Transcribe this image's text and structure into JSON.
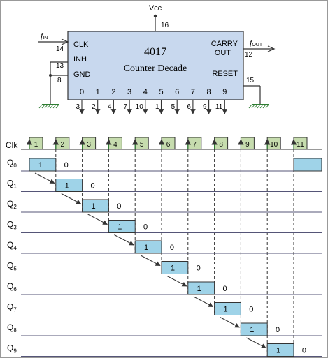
{
  "chip": {
    "vcc_label": "Vcc",
    "vcc_pin": "16",
    "name": "4017",
    "description": "Counter Decade",
    "clk_label": "CLK",
    "clk_pin": "14",
    "inh_label": "INH",
    "inh_pin": "13",
    "gnd_label": "GND",
    "gnd_pin": "8",
    "carry_label_1": "CARRY",
    "carry_label_2": "OUT",
    "carry_pin": "12",
    "reset_label": "RESET",
    "reset_pin": "15",
    "fin_main": "f",
    "fin_sub": "IN",
    "fout_main": "f",
    "fout_sub": "OUT",
    "outputs": [
      {
        "label": "0",
        "pin": "3"
      },
      {
        "label": "1",
        "pin": "2"
      },
      {
        "label": "2",
        "pin": "4"
      },
      {
        "label": "3",
        "pin": "7"
      },
      {
        "label": "4",
        "pin": "10"
      },
      {
        "label": "5",
        "pin": "1"
      },
      {
        "label": "6",
        "pin": "5"
      },
      {
        "label": "7",
        "pin": "6"
      },
      {
        "label": "8",
        "pin": "9"
      },
      {
        "label": "9",
        "pin": "11"
      }
    ],
    "body_color": "#c8d8ee",
    "ground_color": "#2e7d32"
  },
  "timing": {
    "clk_label": "Clk",
    "clock_pulses": [
      "1",
      "2",
      "3",
      "4",
      "5",
      "6",
      "7",
      "8",
      "9",
      "10",
      "11"
    ],
    "clock_color": "#c6dcae",
    "high_color": "#9fd3e8",
    "signals": [
      {
        "name": "Q",
        "sub": "0",
        "high_value": "1",
        "low_value": "0",
        "high_slot": 0
      },
      {
        "name": "Q",
        "sub": "1",
        "high_value": "1",
        "low_value": "0",
        "high_slot": 1
      },
      {
        "name": "Q",
        "sub": "2",
        "high_value": "1",
        "low_value": "0",
        "high_slot": 2
      },
      {
        "name": "Q",
        "sub": "3",
        "high_value": "1",
        "low_value": "0",
        "high_slot": 3
      },
      {
        "name": "Q",
        "sub": "4",
        "high_value": "1",
        "low_value": "0",
        "high_slot": 4
      },
      {
        "name": "Q",
        "sub": "5",
        "high_value": "1",
        "low_value": "0",
        "high_slot": 5
      },
      {
        "name": "Q",
        "sub": "6",
        "high_value": "1",
        "low_value": "0",
        "high_slot": 6
      },
      {
        "name": "Q",
        "sub": "7",
        "high_value": "1",
        "low_value": "0",
        "high_slot": 7
      },
      {
        "name": "Q",
        "sub": "8",
        "high_value": "1",
        "low_value": "0",
        "high_slot": 8
      },
      {
        "name": "Q",
        "sub": "9",
        "high_value": "1",
        "low_value": "0",
        "high_slot": 9
      }
    ],
    "q0_repeat_slot": 10
  }
}
